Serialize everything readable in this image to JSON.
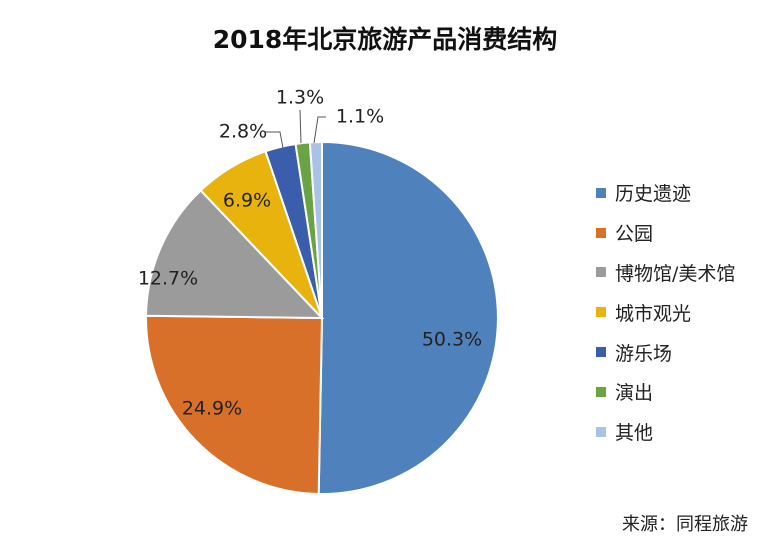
{
  "chart_data": {
    "type": "pie",
    "title": "2018年北京旅游产品消费结构",
    "categories": [
      "历史遗迹",
      "公园",
      "博物馆/美术馆",
      "城市观光",
      "游乐场",
      "演出",
      "其他"
    ],
    "values": [
      50.3,
      24.9,
      12.7,
      6.9,
      2.8,
      1.3,
      1.1
    ],
    "labels": [
      "50.3%",
      "24.9%",
      "12.7%",
      "6.9%",
      "2.8%",
      "1.3%",
      "1.1%"
    ],
    "colors": [
      "#4f81bd",
      "#d9702a",
      "#9b9b9b",
      "#e8b30c",
      "#3a5eab",
      "#6aa343",
      "#a9c3e6"
    ],
    "legend_position": "right"
  },
  "source_note": "来源：同程旅游"
}
